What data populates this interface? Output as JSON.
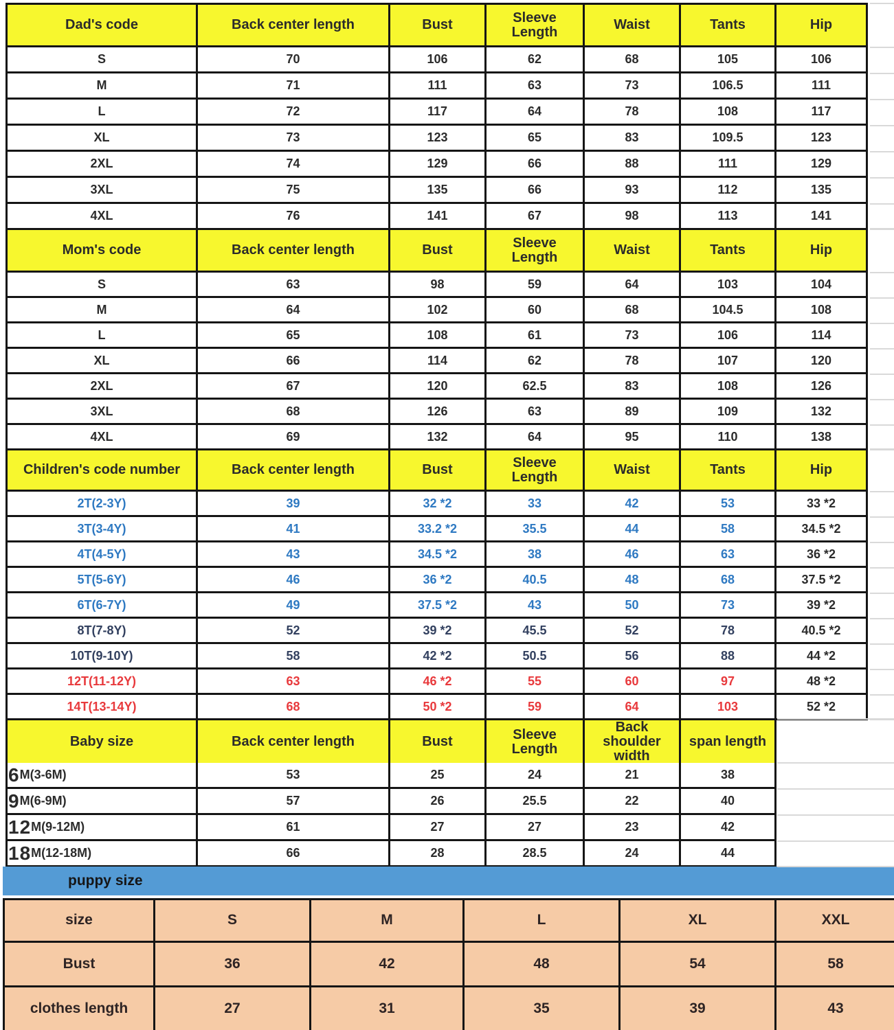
{
  "colors": {
    "yellow": "#F7F72E",
    "line": "#151515",
    "text": "#2b2b2b",
    "row_blue": "#2E79C2",
    "row_navy": "#32405F",
    "row_red": "#E8393C",
    "bar_blue": "#549BD5",
    "peach": "#F6CBA6",
    "strip": "#D9D9D9"
  },
  "sections": [
    {
      "name": "dad",
      "columns": [
        "Dad's code",
        "Back center length",
        "Bust",
        "Sleeve\nLength",
        "Waist",
        "Tants",
        "Hip"
      ],
      "rows": [
        {
          "color": "black",
          "cells": [
            "S",
            "70",
            "106",
            "62",
            "68",
            "105",
            "106"
          ]
        },
        {
          "color": "black",
          "cells": [
            "M",
            "71",
            "111",
            "63",
            "73",
            "106.5",
            "111"
          ]
        },
        {
          "color": "black",
          "cells": [
            "L",
            "72",
            "117",
            "64",
            "78",
            "108",
            "117"
          ]
        },
        {
          "color": "black",
          "cells": [
            "XL",
            "73",
            "123",
            "65",
            "83",
            "109.5",
            "123"
          ]
        },
        {
          "color": "black",
          "cells": [
            "2XL",
            "74",
            "129",
            "66",
            "88",
            "111",
            "129"
          ]
        },
        {
          "color": "black",
          "cells": [
            "3XL",
            "75",
            "135",
            "66",
            "93",
            "112",
            "135"
          ]
        },
        {
          "color": "black",
          "cells": [
            "4XL",
            "76",
            "141",
            "67",
            "98",
            "113",
            "141"
          ]
        }
      ]
    },
    {
      "name": "mom",
      "columns": [
        "Mom's code",
        "Back center length",
        "Bust",
        "Sleeve\nLength",
        "Waist",
        "Tants",
        "Hip"
      ],
      "rows": [
        {
          "color": "black",
          "cells": [
            "S",
            "63",
            "98",
            "59",
            "64",
            "103",
            "104"
          ]
        },
        {
          "color": "black",
          "cells": [
            "M",
            "64",
            "102",
            "60",
            "68",
            "104.5",
            "108"
          ]
        },
        {
          "color": "black",
          "cells": [
            "L",
            "65",
            "108",
            "61",
            "73",
            "106",
            "114"
          ]
        },
        {
          "color": "black",
          "cells": [
            "XL",
            "66",
            "114",
            "62",
            "78",
            "107",
            "120"
          ]
        },
        {
          "color": "black",
          "cells": [
            "2XL",
            "67",
            "120",
            "62.5",
            "83",
            "108",
            "126"
          ]
        },
        {
          "color": "black",
          "cells": [
            "3XL",
            "68",
            "126",
            "63",
            "89",
            "109",
            "132"
          ]
        },
        {
          "color": "black",
          "cells": [
            "4XL",
            "69",
            "132",
            "64",
            "95",
            "110",
            "138"
          ]
        }
      ]
    },
    {
      "name": "children",
      "columns": [
        "Children's code number",
        "Back center length",
        "Bust",
        "Sleeve\nLength",
        "Waist",
        "Tants",
        "Hip"
      ],
      "rows": [
        {
          "color": "blue",
          "cells": [
            "2T(2-3Y)",
            "39",
            "32 *2",
            "33",
            "42",
            "53",
            "33 *2"
          ]
        },
        {
          "color": "blue",
          "cells": [
            "3T(3-4Y)",
            "41",
            "33.2 *2",
            "35.5",
            "44",
            "58",
            "34.5 *2"
          ]
        },
        {
          "color": "blue",
          "cells": [
            "4T(4-5Y)",
            "43",
            "34.5 *2",
            "38",
            "46",
            "63",
            "36 *2"
          ]
        },
        {
          "color": "blue",
          "cells": [
            "5T(5-6Y)",
            "46",
            "36 *2",
            "40.5",
            "48",
            "68",
            "37.5 *2"
          ]
        },
        {
          "color": "blue",
          "cells": [
            "6T(6-7Y)",
            "49",
            "37.5 *2",
            "43",
            "50",
            "73",
            "39 *2"
          ]
        },
        {
          "color": "navy",
          "cells": [
            "8T(7-8Y)",
            "52",
            "39 *2",
            "45.5",
            "52",
            "78",
            "40.5 *2"
          ]
        },
        {
          "color": "navy",
          "cells": [
            "10T(9-10Y)",
            "58",
            "42 *2",
            "50.5",
            "56",
            "88",
            "44 *2"
          ]
        },
        {
          "color": "red",
          "cells": [
            "12T(11-12Y)",
            "63",
            "46 *2",
            "55",
            "60",
            "97",
            "48 *2"
          ]
        },
        {
          "color": "red",
          "cells": [
            "14T(13-14Y)",
            "68",
            "50 *2",
            "59",
            "64",
            "103",
            "52 *2"
          ]
        }
      ]
    },
    {
      "name": "baby",
      "columns": [
        "Baby size",
        "Back center length",
        "Bust",
        "Sleeve\nLength",
        "Back\nshoulder width",
        "span length"
      ],
      "rows": [
        {
          "label_big": "6",
          "label_rest": "M(3-6M)",
          "values": [
            "53",
            "25",
            "24",
            "21",
            "38"
          ]
        },
        {
          "label_big": "9",
          "label_rest": "M(6-9M)",
          "values": [
            "57",
            "26",
            "25.5",
            "22",
            "40"
          ]
        },
        {
          "label_big": "12",
          "label_rest": "M(9-12M)",
          "values": [
            "61",
            "27",
            "27",
            "23",
            "42"
          ]
        },
        {
          "label_big": "18",
          "label_rest": "M(12-18M)",
          "values": [
            "66",
            "28",
            "28.5",
            "24",
            "44"
          ]
        }
      ]
    }
  ],
  "puppy": {
    "bar_label": "puppy size",
    "row_labels": [
      "size",
      "Bust",
      "clothes length"
    ],
    "sizes": [
      "S",
      "M",
      "L",
      "XL",
      "XXL"
    ],
    "bust": [
      "36",
      "42",
      "48",
      "54",
      "58"
    ],
    "clothes_length": [
      "27",
      "31",
      "35",
      "39",
      "43"
    ]
  }
}
